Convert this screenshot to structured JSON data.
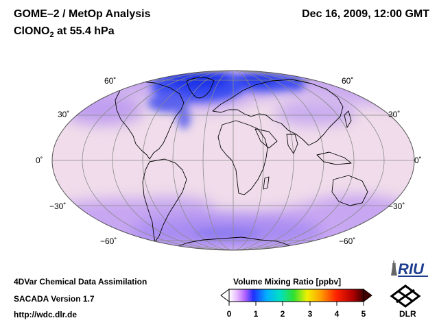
{
  "header": {
    "title": "GOME–2 / MetOp Analysis",
    "species": "ClONO",
    "species_sub": "2",
    "pressure": " at 55.4 hPa",
    "datetime": "Dec 16, 2009, 12:00 GMT"
  },
  "map": {
    "projection": "mollweide",
    "lat_labels_left": [
      "60˚",
      "30˚",
      "0˚",
      "−30˚",
      "−60˚"
    ],
    "lat_labels_right": [
      "60˚",
      "30˚",
      "0˚",
      "−30˚",
      "−60˚"
    ],
    "colors": {
      "background_field": "#f0dcea",
      "low_values": "#1a3cf0",
      "mid_values": "#b49cf4",
      "coastline": "#000000",
      "graticule": "#8a8a8a"
    }
  },
  "colorbar": {
    "title": "Volume Mixing Ratio [ppbv]",
    "ticks": [
      "0",
      "1",
      "2",
      "3",
      "4",
      "5"
    ],
    "min": 0,
    "max": 5,
    "colors": [
      "#ffffff",
      "#e0b0ff",
      "#a040ff",
      "#2030ff",
      "#00b0ff",
      "#00e0c0",
      "#30e030",
      "#f0f000",
      "#ffa000",
      "#ff2000",
      "#b00000",
      "#400000"
    ]
  },
  "footer": {
    "line1": "4DVar Chemical Data Assimilation",
    "line2": "SACADA Version 1.7",
    "line3": "http://wdc.dlr.de"
  },
  "logos": {
    "riu": "RIU",
    "dlr": "DLR"
  }
}
